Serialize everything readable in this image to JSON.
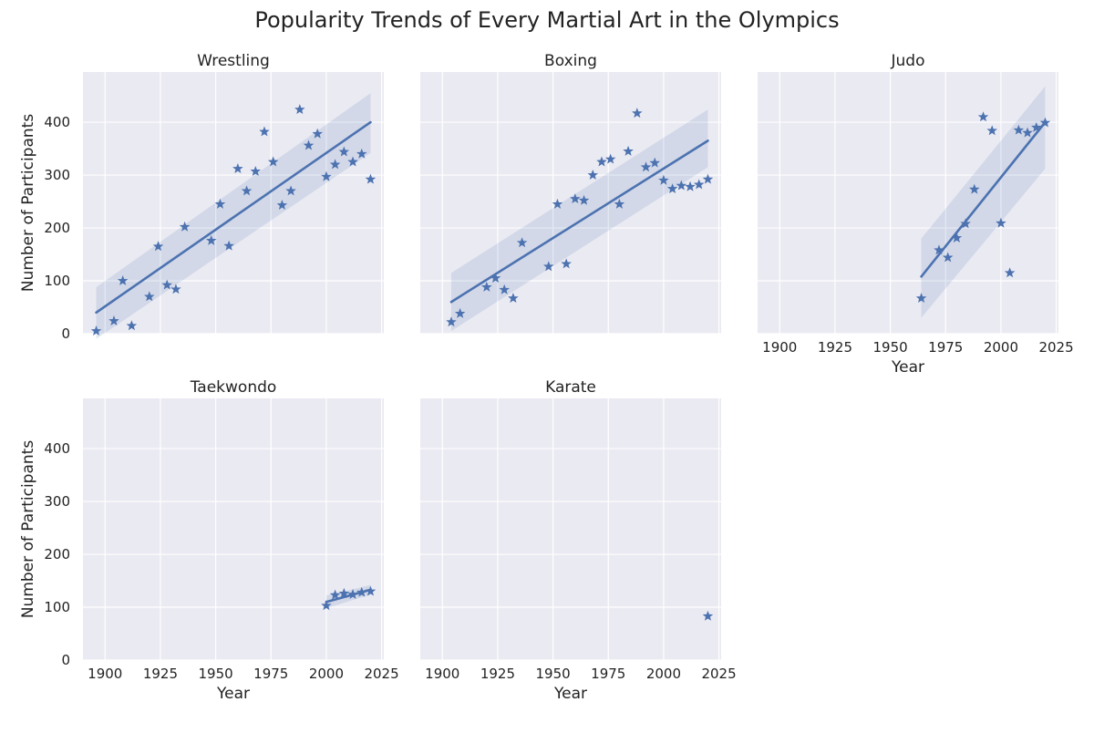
{
  "figure": {
    "title": "Popularity Trends of Every Martial Art in the Olympics"
  },
  "chart_data": {
    "type": "scatter",
    "title": "Popularity Trends of Every Martial Art in the Olympics",
    "xlabel": "Year",
    "ylabel": "Number of Participants",
    "xlim": [
      1890,
      2026
    ],
    "ylim": [
      0,
      495
    ],
    "xticks": [
      1900,
      1925,
      1950,
      1975,
      2000,
      2025
    ],
    "yticks": [
      0,
      100,
      200,
      300,
      400
    ],
    "grid": true,
    "marker": "star",
    "colors": {
      "marker": "#4C72B0",
      "line": "#4C72B0",
      "band": "#4C72B0",
      "panel_bg": "#EAEAF2",
      "grid": "#FFFFFF"
    },
    "panels": [
      {
        "name": "Wrestling",
        "points": [
          [
            1896,
            5
          ],
          [
            1904,
            24
          ],
          [
            1908,
            100
          ],
          [
            1912,
            15
          ],
          [
            1920,
            70
          ],
          [
            1924,
            165
          ],
          [
            1928,
            92
          ],
          [
            1932,
            84
          ],
          [
            1936,
            202
          ],
          [
            1948,
            176
          ],
          [
            1952,
            245
          ],
          [
            1956,
            166
          ],
          [
            1960,
            312
          ],
          [
            1964,
            270
          ],
          [
            1968,
            307
          ],
          [
            1972,
            382
          ],
          [
            1976,
            325
          ],
          [
            1980,
            243
          ],
          [
            1984,
            270
          ],
          [
            1988,
            424
          ],
          [
            1992,
            356
          ],
          [
            1996,
            378
          ],
          [
            2000,
            297
          ],
          [
            2004,
            320
          ],
          [
            2008,
            344
          ],
          [
            2012,
            325
          ],
          [
            2016,
            340
          ],
          [
            2020,
            292
          ]
        ],
        "fit": {
          "x": [
            1896,
            2020
          ],
          "y": [
            40,
            400
          ],
          "ci_low": [
            -10,
            342
          ],
          "ci_high": [
            88,
            455
          ]
        }
      },
      {
        "name": "Boxing",
        "points": [
          [
            1904,
            22
          ],
          [
            1908,
            38
          ],
          [
            1920,
            88
          ],
          [
            1924,
            105
          ],
          [
            1928,
            83
          ],
          [
            1932,
            67
          ],
          [
            1936,
            172
          ],
          [
            1948,
            127
          ],
          [
            1952,
            245
          ],
          [
            1956,
            132
          ],
          [
            1960,
            255
          ],
          [
            1964,
            252
          ],
          [
            1968,
            300
          ],
          [
            1972,
            325
          ],
          [
            1976,
            330
          ],
          [
            1980,
            245
          ],
          [
            1984,
            345
          ],
          [
            1988,
            417
          ],
          [
            1992,
            315
          ],
          [
            1996,
            323
          ],
          [
            2000,
            290
          ],
          [
            2004,
            274
          ],
          [
            2008,
            280
          ],
          [
            2012,
            278
          ],
          [
            2016,
            282
          ],
          [
            2020,
            292
          ]
        ],
        "fit": {
          "x": [
            1904,
            2020
          ],
          "y": [
            60,
            365
          ],
          "ci_low": [
            5,
            315
          ],
          "ci_high": [
            115,
            424
          ]
        }
      },
      {
        "name": "Judo",
        "points": [
          [
            1964,
            67
          ],
          [
            1972,
            158
          ],
          [
            1976,
            144
          ],
          [
            1980,
            181
          ],
          [
            1984,
            208
          ],
          [
            1988,
            273
          ],
          [
            1992,
            410
          ],
          [
            1996,
            384
          ],
          [
            2000,
            209
          ],
          [
            2004,
            115
          ],
          [
            2008,
            385
          ],
          [
            2012,
            380
          ],
          [
            2016,
            390
          ],
          [
            2020,
            399
          ]
        ],
        "fit": {
          "x": [
            1964,
            2020
          ],
          "y": [
            108,
            400
          ],
          "ci_low": [
            30,
            312
          ],
          "ci_high": [
            180,
            468
          ]
        }
      },
      {
        "name": "Taekwondo",
        "points": [
          [
            2000,
            103
          ],
          [
            2004,
            123
          ],
          [
            2008,
            126
          ],
          [
            2012,
            124
          ],
          [
            2016,
            128
          ],
          [
            2020,
            130
          ]
        ],
        "fit": {
          "x": [
            2000,
            2020
          ],
          "y": [
            110,
            133
          ],
          "ci_low": [
            98,
            124
          ],
          "ci_high": [
            122,
            142
          ]
        }
      },
      {
        "name": "Karate",
        "points": [
          [
            2020,
            83
          ]
        ],
        "fit": null
      }
    ]
  }
}
